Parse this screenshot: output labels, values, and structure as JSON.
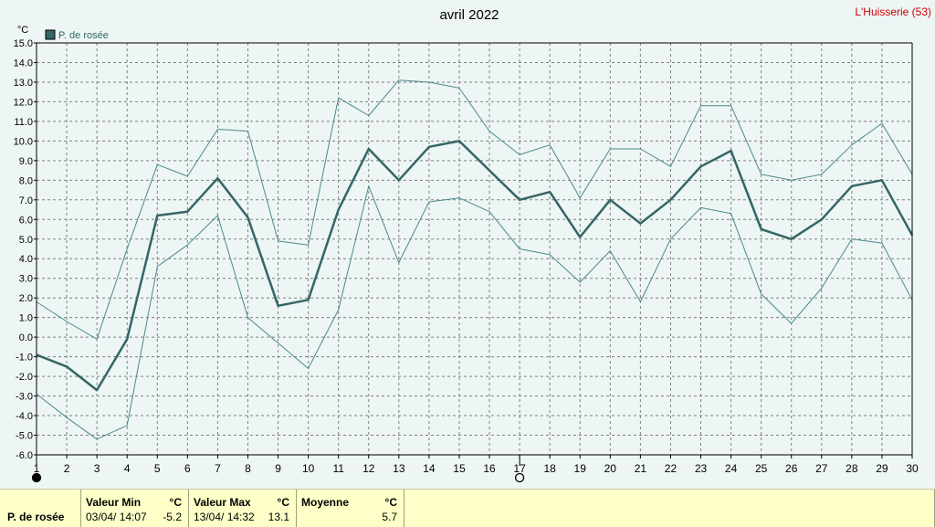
{
  "chart_data": {
    "type": "line",
    "title": "avril 2022",
    "station": "L'Huisserie (53)",
    "ylabel": "°C",
    "ylim": [
      -6,
      15
    ],
    "yticks": [
      "15.0",
      "14.0",
      "13.0",
      "12.0",
      "11.0",
      "10.0",
      "9.0",
      "8.0",
      "7.0",
      "6.0",
      "5.0",
      "4.0",
      "3.0",
      "2.0",
      "1.0",
      "0.0",
      "-1.0",
      "-2.0",
      "-3.0",
      "-4.0",
      "-5.0",
      "-6.0"
    ],
    "x": [
      1,
      2,
      3,
      4,
      5,
      6,
      7,
      8,
      9,
      10,
      11,
      12,
      13,
      14,
      15,
      16,
      17,
      18,
      19,
      20,
      21,
      22,
      23,
      24,
      25,
      26,
      27,
      28,
      29,
      30
    ],
    "xlim": [
      1,
      30
    ],
    "grid": true,
    "legend_position": "top-left",
    "series": [
      {
        "name": "P. de rosée",
        "color": "#336666",
        "values": [
          -0.9,
          -1.5,
          -2.7,
          -0.1,
          6.2,
          6.4,
          8.1,
          6.1,
          1.6,
          1.9,
          6.5,
          9.6,
          8.0,
          9.7,
          10.0,
          8.5,
          7.0,
          7.4,
          5.1,
          7.0,
          5.8,
          7.0,
          8.7,
          9.5,
          5.5,
          5.0,
          6.0,
          7.7,
          8.0,
          5.2
        ]
      },
      {
        "color": "#4a8a8a",
        "values": [
          1.8,
          0.8,
          -0.1,
          4.5,
          8.8,
          8.2,
          10.6,
          10.5,
          4.9,
          4.7,
          12.2,
          11.3,
          13.1,
          13.0,
          12.7,
          10.5,
          9.3,
          9.8,
          7.1,
          9.6,
          9.6,
          8.7,
          11.8,
          11.8,
          8.3,
          8.0,
          8.3,
          9.8,
          10.9,
          8.3
        ]
      },
      {
        "color": "#4a8a8a",
        "values": [
          -2.9,
          -4.1,
          -5.2,
          -4.5,
          3.6,
          4.7,
          6.2,
          1.0,
          -0.3,
          -1.6,
          1.4,
          7.7,
          3.8,
          6.9,
          7.1,
          6.4,
          4.5,
          4.2,
          2.8,
          4.4,
          1.8,
          5.0,
          6.6,
          6.3,
          2.2,
          0.7,
          2.5,
          5.0,
          4.8,
          1.9
        ]
      }
    ],
    "markers": [
      {
        "type": "new-moon",
        "x": 1
      },
      {
        "type": "full-moon",
        "x": 17
      }
    ]
  },
  "colors": {
    "background": "#eef5f5",
    "grid": "#808080",
    "title_red": "#cc0000",
    "series_main": "#336666",
    "series_range": "#4a8a8a",
    "footer_bg": "#ffffc8"
  },
  "footer": {
    "param_label": "P. de rosée",
    "min_header": "Valeur Min",
    "min_unit": "°C",
    "min_date": "03/04/  14:07",
    "min_value": "-5.2",
    "max_header": "Valeur Max",
    "max_unit": "°C",
    "max_date": "13/04/  14:32",
    "max_value": "13.1",
    "avg_header": "Moyenne",
    "avg_unit": "°C",
    "avg_value": "5.7"
  }
}
